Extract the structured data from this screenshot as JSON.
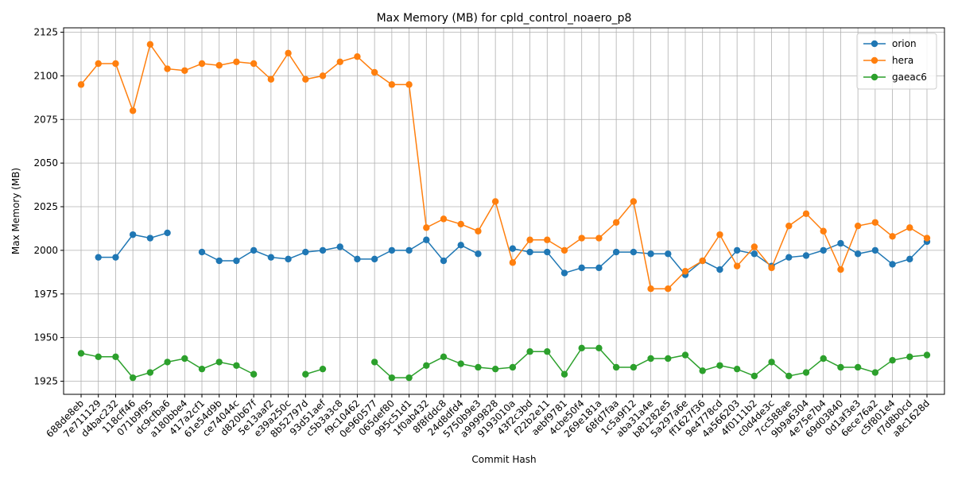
{
  "chart_data": {
    "type": "line",
    "title": "Max Memory (MB) for cpld_control_noaero_p8",
    "xlabel": "Commit Hash",
    "ylabel": "Max Memory (MB)",
    "ylim": [
      1917.5,
      2127.5
    ],
    "yticks": [
      1925,
      1950,
      1975,
      2000,
      2025,
      2050,
      2075,
      2100,
      2125
    ],
    "grid": true,
    "legend_position": "top-right",
    "categories": [
      "688de8eb",
      "7e711129",
      "d4bac232",
      "118cff46",
      "071b9f95",
      "dc9cfba6",
      "a180bbe4",
      "417a2cf1",
      "61e54d9b",
      "ce74044c",
      "d820b67f",
      "5e13aaf2",
      "e39a250c",
      "8b52797d",
      "93d51aef",
      "c5b3a3c8",
      "f9c10462",
      "0e960577",
      "065def80",
      "995c51d1",
      "1f0ab432",
      "8f8fddc8",
      "24d8dfd4",
      "5750b9e3",
      "a9999828",
      "9193010a",
      "43f2c3bd",
      "f22b2e11",
      "aebf9781",
      "4cbe50f4",
      "269e181a",
      "68fd7faa",
      "1c5a9f12",
      "aba31a4e",
      "b81282e5",
      "5a297a6e",
      "ff1627f36",
      "9e4778cd",
      "4a566203",
      "4f0111b2",
      "c0d4de3c",
      "7cc588ae",
      "9b9a6304",
      "4e75e7b4",
      "69d03840",
      "0d1af3e3",
      "6ece76a2",
      "c5f801e4",
      "f7d8b0cd",
      "a8c1628d"
    ],
    "series": [
      {
        "name": "orion",
        "color": "#1f77b4",
        "values": [
          null,
          1996,
          1996,
          2009,
          2007,
          2010,
          null,
          1999,
          1994,
          1994,
          2000,
          1996,
          1995,
          1999,
          2000,
          2002,
          1995,
          1995,
          2000,
          2000,
          2006,
          1994,
          2003,
          1998,
          null,
          2001,
          1999,
          1999,
          1987,
          1990,
          1990,
          1999,
          1999,
          1998,
          1998,
          1986,
          1994,
          1989,
          2000,
          1998,
          1991,
          1996,
          1997,
          2000,
          2004,
          1998,
          2000,
          1992,
          1995,
          2005
        ]
      },
      {
        "name": "hera",
        "color": "#ff7f0e",
        "values": [
          2095,
          2107,
          2107,
          2080,
          2118,
          2104,
          2103,
          2107,
          2106,
          2108,
          2107,
          2098,
          2113,
          2098,
          2100,
          2108,
          2111,
          2102,
          2095,
          2095,
          2013,
          2018,
          2015,
          2011,
          2028,
          1993,
          2006,
          2006,
          2000,
          2007,
          2007,
          2016,
          2028,
          1978,
          1978,
          1988,
          1994,
          2009,
          1991,
          2002,
          1990,
          2014,
          2021,
          2011,
          1989,
          2014,
          2016,
          2008,
          2013,
          2007
        ]
      },
      {
        "name": "gaeac6",
        "color": "#2ca02c",
        "values": [
          1941,
          1939,
          1939,
          1927,
          1930,
          1936,
          1938,
          1932,
          1936,
          1934,
          1929,
          null,
          null,
          1929,
          1932,
          null,
          null,
          1936,
          1927,
          1927,
          1934,
          1939,
          1935,
          1933,
          1932,
          1933,
          1942,
          1942,
          1929,
          1944,
          1944,
          1933,
          1933,
          1938,
          1938,
          1940,
          1931,
          1934,
          1932,
          1928,
          1936,
          1928,
          1930,
          1938,
          1933,
          1933,
          1930,
          1937,
          1939,
          1940
        ]
      }
    ]
  }
}
